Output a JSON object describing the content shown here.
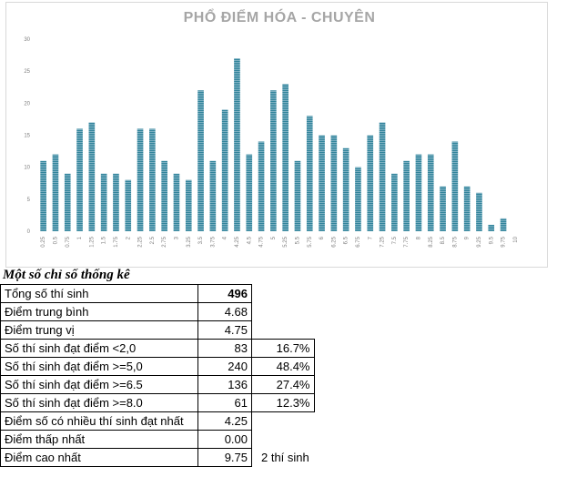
{
  "chart_data": {
    "type": "bar",
    "title": "PHỔ ĐIỂM HÓA - CHUYÊN",
    "xlabel": "",
    "ylabel": "",
    "ylim": [
      0,
      30
    ],
    "yticks": [
      0,
      5,
      10,
      15,
      20,
      25,
      30
    ],
    "grid": false,
    "legend": "none",
    "bar_color": "#31849b",
    "categories": [
      "0.25",
      "0.5",
      "0.75",
      "1",
      "1.25",
      "1.5",
      "1.75",
      "2",
      "2.25",
      "2.5",
      "2.75",
      "3",
      "3.25",
      "3.5",
      "3.75",
      "4",
      "4.25",
      "4.5",
      "4.75",
      "5",
      "5.25",
      "5.5",
      "5.75",
      "6",
      "6.25",
      "6.5",
      "6.75",
      "7",
      "7.25",
      "7.5",
      "7.75",
      "8",
      "8.25",
      "8.5",
      "8.75",
      "9",
      "9.25",
      "9.5",
      "9.75",
      "10"
    ],
    "values": [
      11,
      12,
      9,
      16,
      17,
      9,
      9,
      8,
      16,
      16,
      11,
      9,
      8,
      22,
      11,
      19,
      27,
      12,
      14,
      22,
      23,
      11,
      18,
      15,
      15,
      13,
      10,
      15,
      17,
      9,
      11,
      12,
      12,
      7,
      14,
      7,
      6,
      1,
      2,
      0
    ]
  },
  "stats": {
    "title": "Một số chỉ số thống kê",
    "rows": [
      {
        "label": "Tổng số thí sinh",
        "value": "496",
        "extra": ""
      },
      {
        "label": "Điểm trung bình",
        "value": "4.68",
        "extra": ""
      },
      {
        "label": "Điểm trung vị",
        "value": "4.75",
        "extra": ""
      },
      {
        "label": "Số thí sinh đạt điểm <2,0",
        "value": "83",
        "extra": "16.7%"
      },
      {
        "label": "Số thí sinh đạt điểm >=5,0",
        "value": "240",
        "extra": "48.4%"
      },
      {
        "label": "Số thí sinh đạt điểm >=6.5",
        "value": "136",
        "extra": "27.4%"
      },
      {
        "label": "Số thí sinh đạt điểm >=8.0",
        "value": "61",
        "extra": "12.3%"
      },
      {
        "label": "Điểm số có nhiều thí sinh đạt nhất",
        "value": "4.25",
        "extra": ""
      },
      {
        "label": "Điểm thấp nhất",
        "value": "0.00",
        "extra": ""
      },
      {
        "label": "Điểm cao nhất",
        "value": "9.75",
        "extra": "2 thí sinh"
      }
    ]
  }
}
